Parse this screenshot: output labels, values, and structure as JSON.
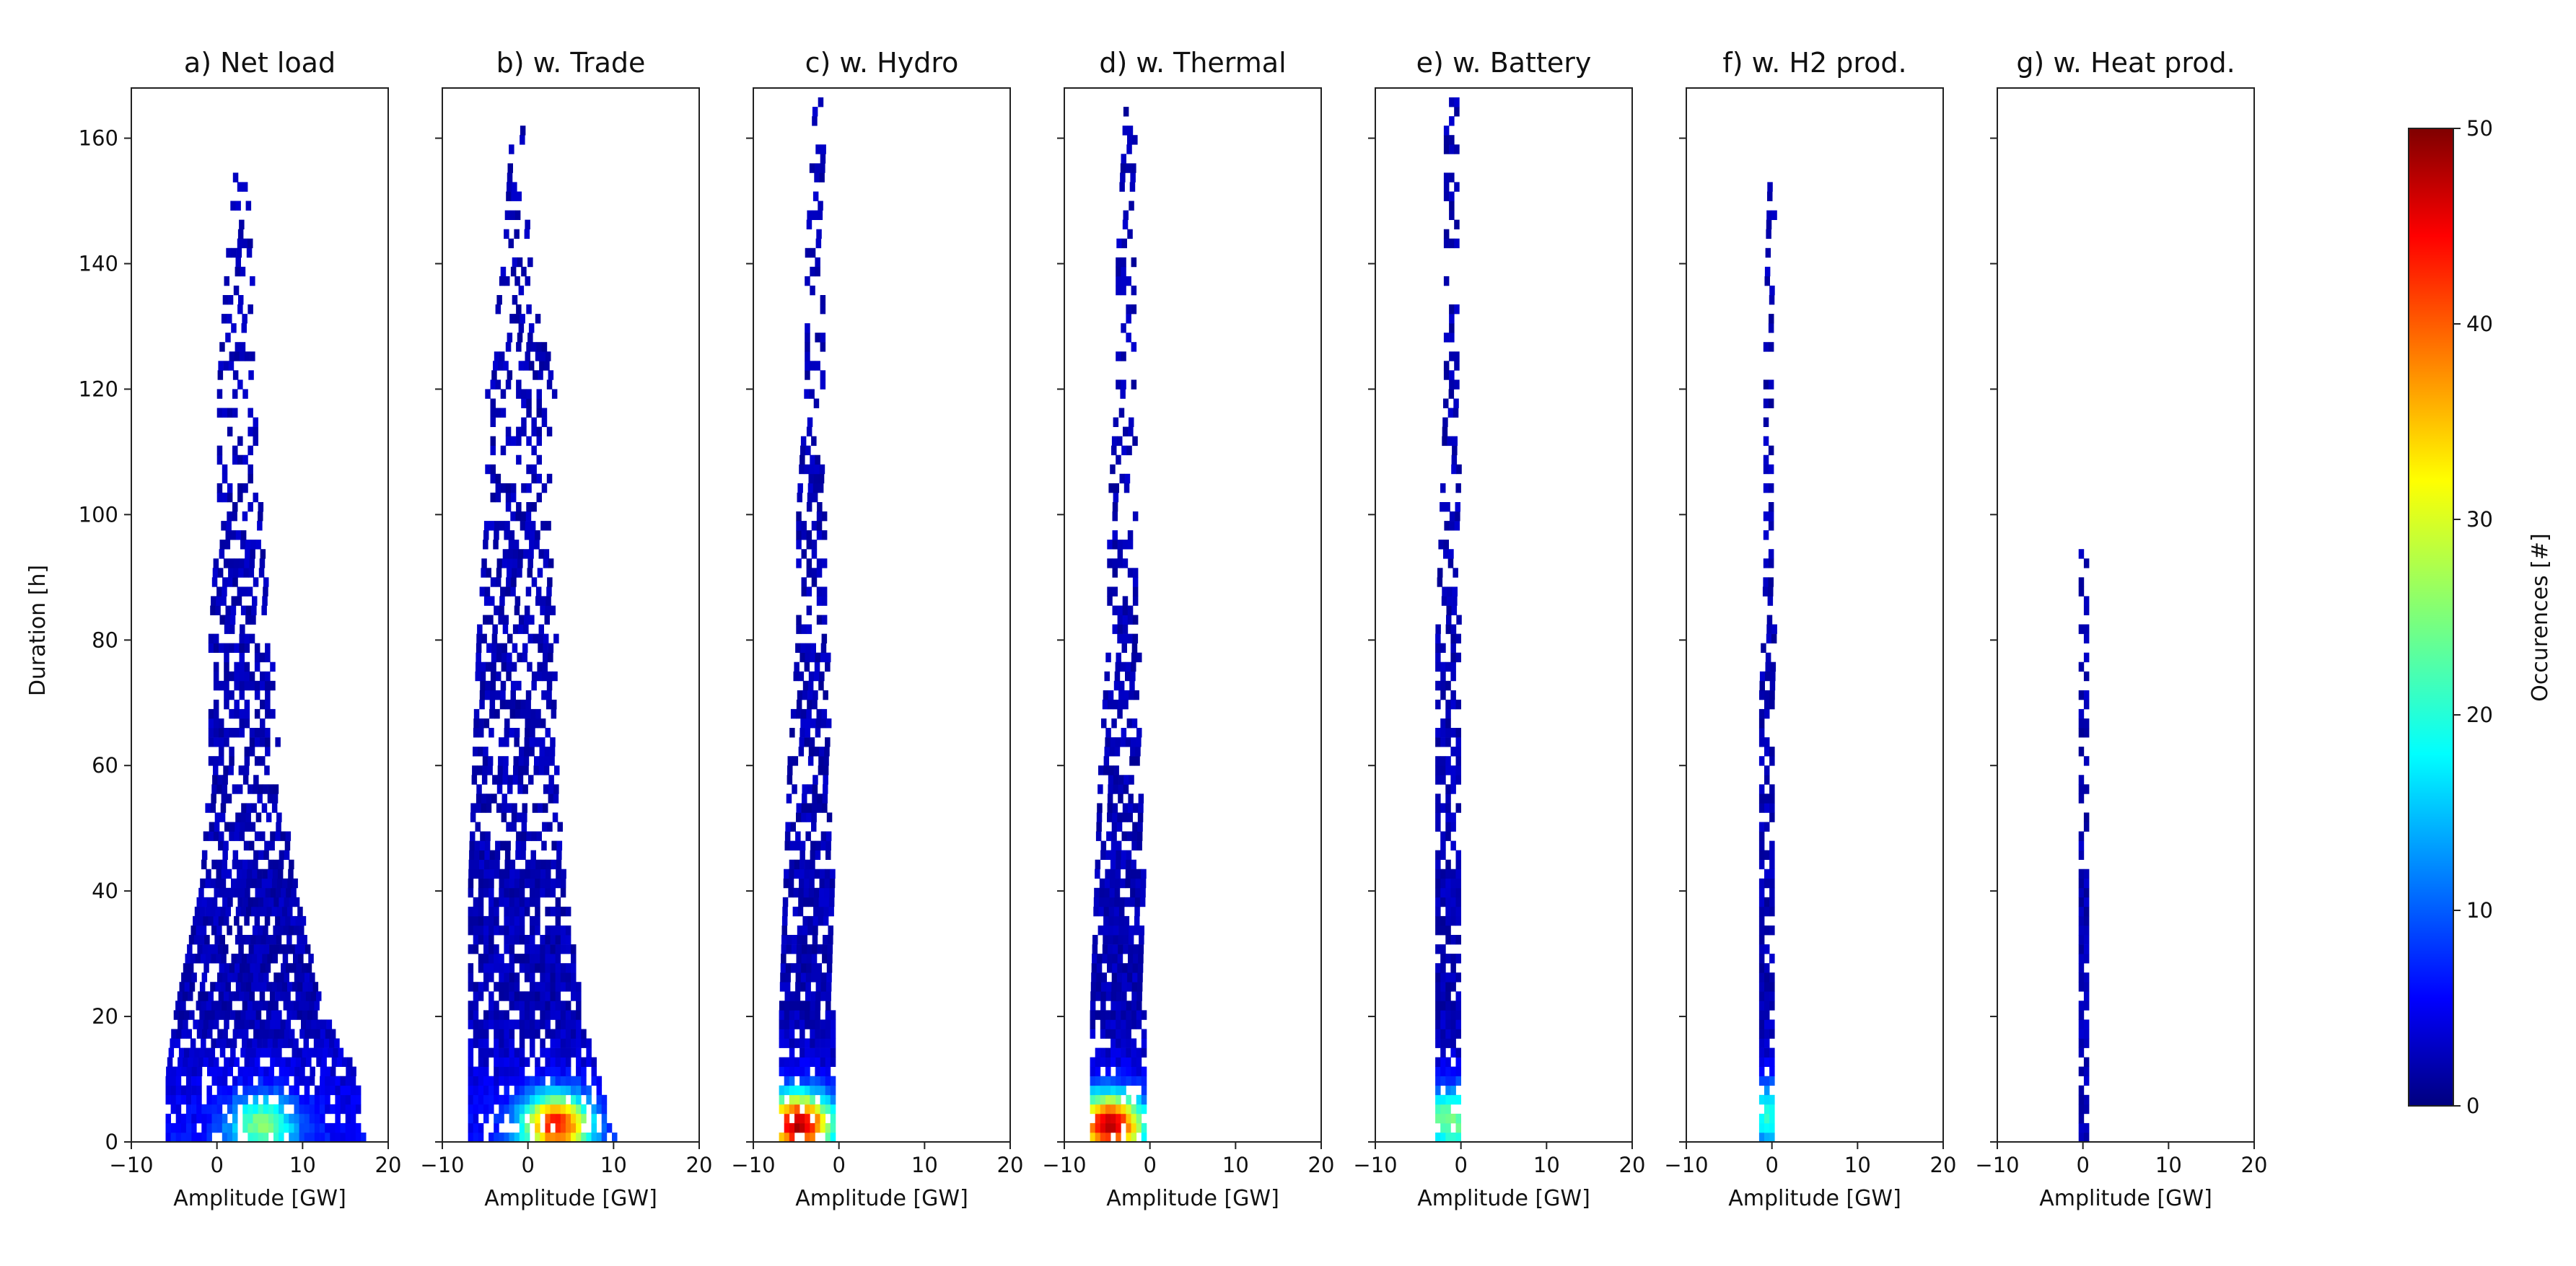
{
  "chart_data": {
    "type": "heatmap",
    "figure_subtitle": "",
    "shared_axes": {
      "xlabel": "Amplitude [GW]",
      "ylabel": "Duration [h]",
      "xlim": [
        -10,
        20
      ],
      "ylim": [
        0,
        168
      ],
      "xticks": [
        -10,
        0,
        10,
        20
      ],
      "xtick_labels": [
        "−10",
        "0",
        "10",
        "20"
      ],
      "yticks": [
        0,
        20,
        40,
        60,
        80,
        100,
        120,
        140,
        160
      ],
      "ytick_labels": [
        "0",
        "20",
        "40",
        "60",
        "80",
        "100",
        "120",
        "140",
        "160"
      ],
      "grid": false
    },
    "colorbar": {
      "label": "Occurences [#]",
      "min": 0,
      "max": 50,
      "ticks": [
        0,
        10,
        20,
        30,
        40,
        50
      ],
      "tick_labels": [
        "0",
        "10",
        "20",
        "30",
        "40",
        "50"
      ],
      "colormap": "jet",
      "placement": "right"
    },
    "panels": [
      {
        "title": "a) Net load",
        "x_min_by_duration": [
          [
            0,
            -6
          ],
          [
            10,
            -6
          ],
          [
            20,
            -5
          ],
          [
            40,
            -2
          ],
          [
            60,
            -1
          ],
          [
            80,
            -1
          ],
          [
            100,
            0
          ],
          [
            120,
            0
          ],
          [
            140,
            1
          ],
          [
            155,
            2
          ]
        ],
        "x_max_by_duration": [
          [
            0,
            17
          ],
          [
            10,
            16
          ],
          [
            20,
            12
          ],
          [
            40,
            9
          ],
          [
            60,
            7
          ],
          [
            80,
            6
          ],
          [
            100,
            5
          ],
          [
            120,
            4
          ],
          [
            140,
            4
          ],
          [
            155,
            3
          ]
        ],
        "density_peak": {
          "x": 5,
          "y": 2,
          "count": 22
        },
        "max_duration": 155
      },
      {
        "title": "b) w. Trade",
        "x_min_by_duration": [
          [
            0,
            -7
          ],
          [
            10,
            -7
          ],
          [
            20,
            -7
          ],
          [
            40,
            -7
          ],
          [
            60,
            -6.5
          ],
          [
            80,
            -6
          ],
          [
            100,
            -5
          ],
          [
            120,
            -5
          ],
          [
            140,
            -3
          ],
          [
            163,
            -2
          ]
        ],
        "x_max_by_duration": [
          [
            0,
            10
          ],
          [
            10,
            8
          ],
          [
            20,
            6
          ],
          [
            40,
            4
          ],
          [
            60,
            3
          ],
          [
            80,
            3
          ],
          [
            100,
            2
          ],
          [
            120,
            3
          ],
          [
            140,
            0
          ],
          [
            163,
            -1
          ]
        ],
        "density_peak": {
          "x": 3,
          "y": 2,
          "count": 40
        },
        "max_duration": 163
      },
      {
        "title": "c) w. Hydro",
        "x_min_by_duration": [
          [
            0,
            -7
          ],
          [
            10,
            -7
          ],
          [
            20,
            -7
          ],
          [
            40,
            -6.5
          ],
          [
            60,
            -6
          ],
          [
            80,
            -5
          ],
          [
            100,
            -5
          ],
          [
            120,
            -4
          ],
          [
            140,
            -4
          ],
          [
            166,
            -3
          ]
        ],
        "x_max_by_duration": [
          [
            0,
            -1
          ],
          [
            10,
            -1
          ],
          [
            22,
            -1
          ],
          [
            40,
            -1
          ],
          [
            60,
            -1.5
          ],
          [
            80,
            -1.5
          ],
          [
            100,
            -2
          ],
          [
            120,
            -2
          ],
          [
            140,
            -2
          ],
          [
            166,
            -2
          ]
        ],
        "density_peak": {
          "x": -5,
          "y": 2,
          "count": 45
        },
        "max_duration": 166
      },
      {
        "title": "d) w. Thermal",
        "x_min_by_duration": [
          [
            0,
            -7
          ],
          [
            10,
            -7
          ],
          [
            20,
            -7
          ],
          [
            40,
            -6.5
          ],
          [
            60,
            -6
          ],
          [
            80,
            -5
          ],
          [
            100,
            -5
          ],
          [
            120,
            -4
          ],
          [
            140,
            -4
          ],
          [
            166,
            -3
          ]
        ],
        "x_max_by_duration": [
          [
            0,
            -1
          ],
          [
            10,
            -1
          ],
          [
            22,
            -1
          ],
          [
            40,
            -1
          ],
          [
            60,
            -1.5
          ],
          [
            80,
            -1.5
          ],
          [
            100,
            -2
          ],
          [
            120,
            -2
          ],
          [
            140,
            -2
          ],
          [
            166,
            -2
          ]
        ],
        "density_peak": {
          "x": -5,
          "y": 2,
          "count": 45
        },
        "max_duration": 166
      },
      {
        "title": "e) w. Battery",
        "x_min_by_duration": [
          [
            0,
            -3
          ],
          [
            10,
            -3
          ],
          [
            20,
            -3
          ],
          [
            40,
            -3
          ],
          [
            60,
            -3
          ],
          [
            80,
            -3
          ],
          [
            100,
            -2.5
          ],
          [
            120,
            -2
          ],
          [
            140,
            -2
          ],
          [
            166,
            -2
          ]
        ],
        "x_max_by_duration": [
          [
            0,
            0
          ],
          [
            10,
            0
          ],
          [
            22,
            0
          ],
          [
            40,
            -0.5
          ],
          [
            60,
            -0.5
          ],
          [
            80,
            -0.5
          ],
          [
            100,
            -0.5
          ],
          [
            120,
            -0.5
          ],
          [
            140,
            -0.5
          ],
          [
            166,
            -0.5
          ]
        ],
        "density_peak": {
          "x": -1.5,
          "y": 3,
          "count": 22
        },
        "max_duration": 166
      },
      {
        "title": "f) w. H2 prod.",
        "x_min_by_duration": [
          [
            0,
            -1.5
          ],
          [
            10,
            -1.5
          ],
          [
            20,
            -1.5
          ],
          [
            40,
            -1.5
          ],
          [
            60,
            -1.5
          ],
          [
            70,
            -1.5
          ],
          [
            90,
            -1
          ],
          [
            110,
            -1
          ],
          [
            130,
            -1
          ],
          [
            153,
            -0.5
          ]
        ],
        "x_max_by_duration": [
          [
            0,
            0
          ],
          [
            10,
            0
          ],
          [
            20,
            0
          ],
          [
            40,
            0
          ],
          [
            60,
            0
          ],
          [
            70,
            0
          ],
          [
            90,
            0
          ],
          [
            110,
            0
          ],
          [
            130,
            0
          ],
          [
            153,
            0
          ]
        ],
        "density_peak": {
          "x": -0.5,
          "y": 4,
          "count": 18
        },
        "max_duration": 153
      },
      {
        "title": "g) w. Heat prod.",
        "x_min_by_duration": [
          [
            0,
            -0.5
          ],
          [
            15,
            -0.5
          ],
          [
            40,
            -0.5
          ],
          [
            60,
            -0.5
          ],
          [
            94,
            -0.5
          ]
        ],
        "x_max_by_duration": [
          [
            0,
            0.3
          ],
          [
            15,
            0.3
          ],
          [
            40,
            0.3
          ],
          [
            60,
            0.3
          ],
          [
            94,
            0.3
          ]
        ],
        "density_peak": {
          "x": 0,
          "y": 5,
          "count": 2
        },
        "max_duration": 94
      }
    ]
  }
}
